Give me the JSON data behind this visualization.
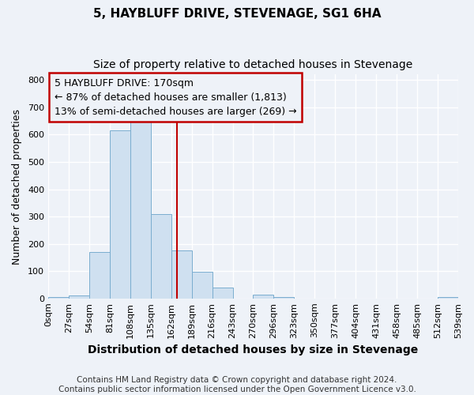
{
  "title": "5, HAYBLUFF DRIVE, STEVENAGE, SG1 6HA",
  "subtitle": "Size of property relative to detached houses in Stevenage",
  "xlabel": "Distribution of detached houses by size in Stevenage",
  "ylabel": "Number of detached properties",
  "bin_edges": [
    0,
    27,
    54,
    81,
    108,
    135,
    162,
    189,
    216,
    243,
    270,
    297,
    324,
    351,
    378,
    405,
    432,
    459,
    486,
    513,
    540
  ],
  "bin_labels": [
    "0sqm",
    "27sqm",
    "54sqm",
    "81sqm",
    "108sqm",
    "135sqm",
    "162sqm",
    "189sqm",
    "216sqm",
    "243sqm",
    "270sqm",
    "296sqm",
    "323sqm",
    "350sqm",
    "377sqm",
    "404sqm",
    "431sqm",
    "458sqm",
    "485sqm",
    "512sqm",
    "539sqm"
  ],
  "counts": [
    5,
    12,
    170,
    615,
    650,
    310,
    175,
    97,
    40,
    0,
    15,
    5,
    0,
    0,
    0,
    0,
    0,
    0,
    0,
    5
  ],
  "bar_color": "#cfe0f0",
  "bar_edge_color": "#7aadcf",
  "property_line_x": 170,
  "property_line_color": "#c00000",
  "annotation_line1": "5 HAYBLUFF DRIVE: 170sqm",
  "annotation_line2": "← 87% of detached houses are smaller (1,813)",
  "annotation_line3": "13% of semi-detached houses are larger (269) →",
  "annotation_box_color": "#c00000",
  "ylim": [
    0,
    820
  ],
  "yticks": [
    0,
    100,
    200,
    300,
    400,
    500,
    600,
    700,
    800
  ],
  "background_color": "#eef2f8",
  "grid_color": "#ffffff",
  "title_fontsize": 11,
  "subtitle_fontsize": 10,
  "xlabel_fontsize": 10,
  "ylabel_fontsize": 9,
  "tick_fontsize": 8,
  "annotation_fontsize": 9,
  "footer_fontsize": 7.5,
  "footer_line1": "Contains HM Land Registry data © Crown copyright and database right 2024.",
  "footer_line2": "Contains public sector information licensed under the Open Government Licence v3.0."
}
